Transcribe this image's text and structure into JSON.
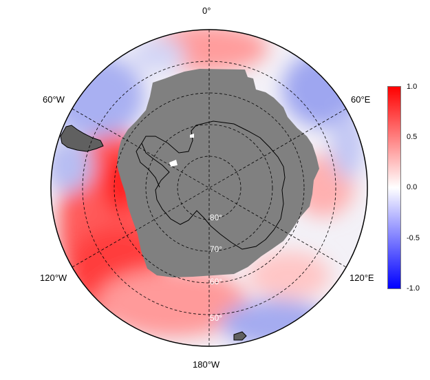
{
  "map": {
    "meridian_labels": {
      "top": "0°",
      "left_upper": "60°W",
      "right_upper": "60°E",
      "left_lower": "120°W",
      "right_lower": "120°E",
      "bottom": "180°W"
    },
    "latitude_labels": [
      "80°",
      "70°",
      "60°",
      "50°"
    ],
    "land_color": "#808080",
    "coast_color": "#000000"
  },
  "colorbar": {
    "ticks": [
      "1.0",
      "0.5",
      "0.0",
      "-0.5",
      "-1.0"
    ],
    "colors": {
      "max": "#ff0000",
      "mid": "#ffffff",
      "min": "#0000ff"
    }
  }
}
